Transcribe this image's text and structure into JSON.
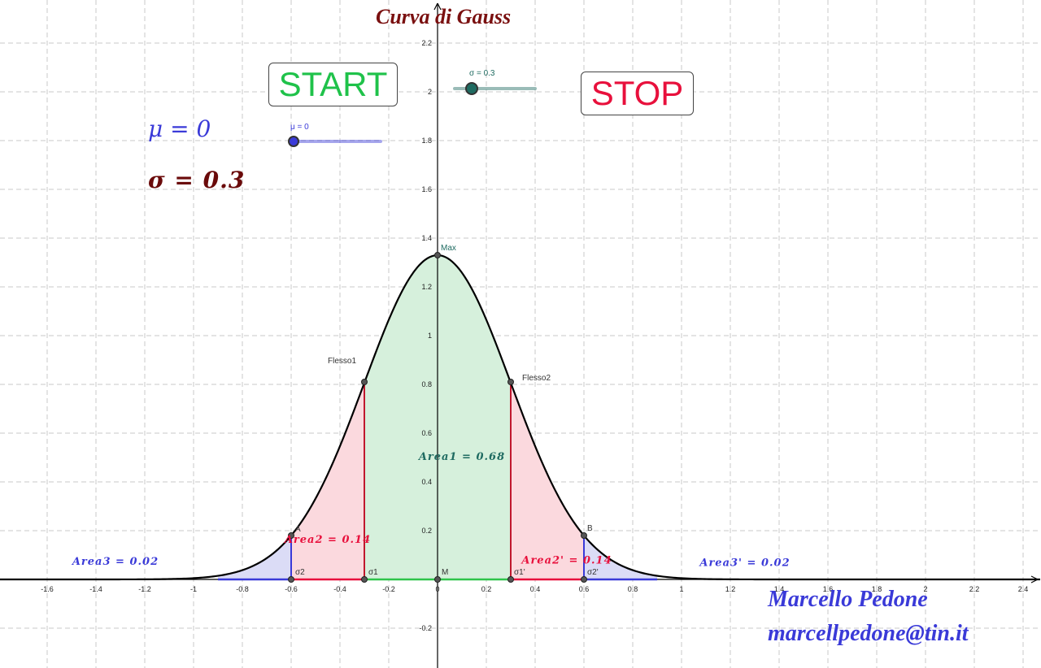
{
  "title": "Curva di Gauss",
  "colors": {
    "title": "#7a1010",
    "start": "#1fc24a",
    "stop": "#e8103c",
    "mu": "#3a3ad8",
    "sigma": "#6a0a0a",
    "author": "#3a3ad8",
    "curve": "#000000",
    "area1_fill": "#d6f0dc",
    "area2_fill": "#fbd9de",
    "area3_fill": "#dbdcf6",
    "area1_label": "#1f6b61",
    "area2_label": "#e8103c",
    "area3_label": "#3a3ad8",
    "sigma1_line": "#c0182e",
    "sigma2_line": "#3a3ad8",
    "sigma_slider": "#1f6b61",
    "mu_slider": "#3a3ad8"
  },
  "buttons": {
    "start": "START",
    "stop": "STOP"
  },
  "params": {
    "mu_text": "μ = 0",
    "sigma_text": "σ = 0.3"
  },
  "sliders": {
    "sigma": {
      "label": "σ = 0.3",
      "value": 0.3,
      "min": 0.1,
      "max": 1
    },
    "mu": {
      "label": "μ = 0",
      "value": 0,
      "min": 0,
      "max": 2
    }
  },
  "author": {
    "name": "Marcello Pedone",
    "email": "marcellpedone@tin.it"
  },
  "chart_data": {
    "type": "area",
    "mu": 0,
    "sigma": 0.3,
    "xlim": [
      -1.8,
      2.47
    ],
    "ylim": [
      -0.35,
      2.27
    ],
    "x_ticks": [
      "-1.6",
      "-1.4",
      "-1.2",
      "-1",
      "-0.8",
      "-0.6",
      "-0.4",
      "-0.2",
      "0",
      "0.2",
      "0.4",
      "0.6",
      "0.8",
      "1",
      "1.2",
      "1.4",
      "1.6",
      "1.8",
      "2",
      "2.2",
      "2.4"
    ],
    "y_ticks": [
      "-0.2",
      "0.2",
      "0.4",
      "0.6",
      "0.8",
      "1",
      "1.2",
      "1.4",
      "1.6",
      "1.8",
      "2",
      "2.2"
    ],
    "points": [
      {
        "label": "Max",
        "x": 0,
        "y": 1.33
      },
      {
        "label": "Flesso1",
        "x": -0.3,
        "y": 0.81
      },
      {
        "label": "Flesso2",
        "x": 0.3,
        "y": 0.81
      },
      {
        "label": "A",
        "x": -0.6,
        "y": 0.18
      },
      {
        "label": "B",
        "x": 0.6,
        "y": 0.18
      },
      {
        "label": "M",
        "x": 0,
        "y": 0
      },
      {
        "label": "σ1",
        "x": -0.3,
        "y": 0
      },
      {
        "label": "σ1'",
        "x": 0.3,
        "y": 0
      },
      {
        "label": "σ2",
        "x": -0.6,
        "y": 0
      },
      {
        "label": "σ2'",
        "x": 0.6,
        "y": 0
      }
    ],
    "areas": [
      {
        "label": "Area1 = 0.68",
        "from": -0.3,
        "to": 0.3
      },
      {
        "label": "Area2 = 0.14",
        "from": -0.6,
        "to": -0.3
      },
      {
        "label": "Area2' = 0.14",
        "from": 0.3,
        "to": 0.6
      },
      {
        "label": "Area3 = 0.02",
        "from": -0.9,
        "to": -0.6
      },
      {
        "label": "Area3' = 0.02",
        "from": 0.6,
        "to": 0.9
      }
    ]
  }
}
